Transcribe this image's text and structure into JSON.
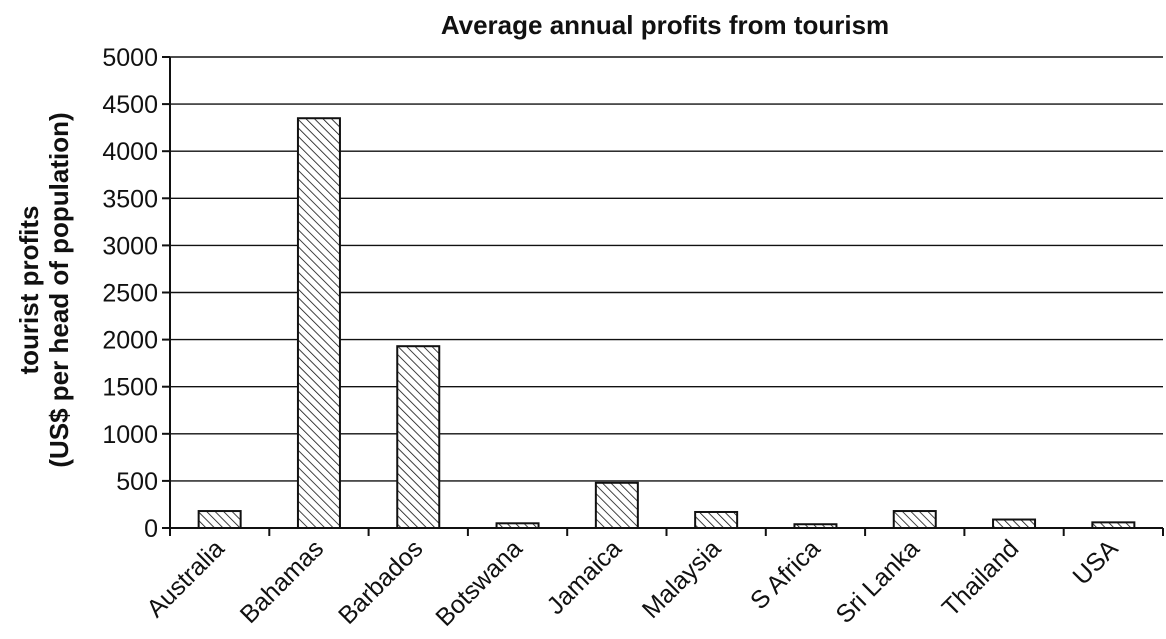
{
  "chart_data": {
    "type": "bar",
    "title": "Average annual profits from tourism",
    "ylabel_lines": [
      "tourist profits",
      "(US$ per head of population)"
    ],
    "xlabel": "",
    "categories": [
      "Australia",
      "Bahamas",
      "Barbados",
      "Botswana",
      "Jamaica",
      "Malaysia",
      "S Africa",
      "Sri Lanka",
      "Thailand",
      "USA"
    ],
    "values": [
      180,
      4350,
      1930,
      50,
      480,
      170,
      40,
      180,
      90,
      60
    ],
    "ylim": [
      0,
      5000
    ],
    "yticks": [
      0,
      500,
      1000,
      1500,
      2000,
      2500,
      3000,
      3500,
      4000,
      4500,
      5000
    ],
    "grid": true,
    "bar_fill": "diagonal-hatch",
    "colors": {
      "bar_stroke": "#111111",
      "grid": "#111111",
      "text": "#111111"
    }
  }
}
